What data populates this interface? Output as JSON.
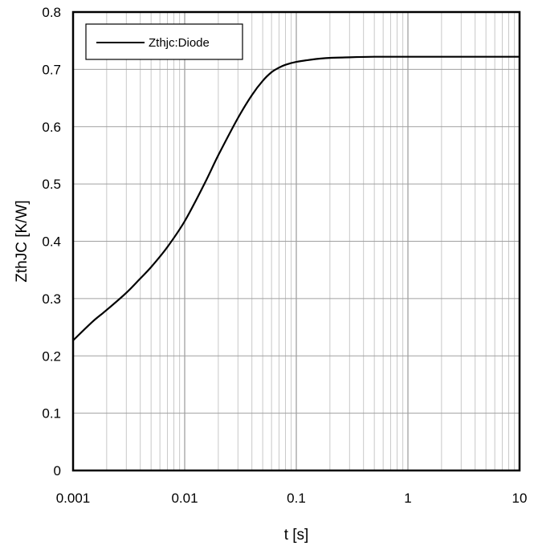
{
  "chart_data": {
    "type": "line",
    "xlabel": "t [s]",
    "ylabel": "ZthJC [K/W]",
    "xscale": "log",
    "xlim": [
      0.001,
      10
    ],
    "ylim": [
      0,
      0.8
    ],
    "x_tick_labels": [
      "0.001",
      "0.01",
      "0.1",
      "1",
      "10"
    ],
    "y_tick_labels": [
      "0",
      "0.1",
      "0.2",
      "0.3",
      "0.4",
      "0.5",
      "0.6",
      "0.7",
      "0.8"
    ],
    "grid": true,
    "legend_position": "top-left",
    "series": [
      {
        "name": "Zthjc:Diode",
        "color": "#000000",
        "x": [
          0.001,
          0.0015,
          0.002,
          0.003,
          0.004,
          0.005,
          0.007,
          0.01,
          0.015,
          0.02,
          0.03,
          0.04,
          0.05,
          0.06,
          0.07,
          0.08,
          0.1,
          0.15,
          0.2,
          0.3,
          0.5,
          1,
          2,
          5,
          10
        ],
        "y": [
          0.227,
          0.26,
          0.28,
          0.31,
          0.335,
          0.355,
          0.39,
          0.435,
          0.5,
          0.55,
          0.615,
          0.655,
          0.68,
          0.695,
          0.703,
          0.708,
          0.713,
          0.718,
          0.72,
          0.721,
          0.722,
          0.722,
          0.722,
          0.722,
          0.722
        ]
      }
    ]
  }
}
